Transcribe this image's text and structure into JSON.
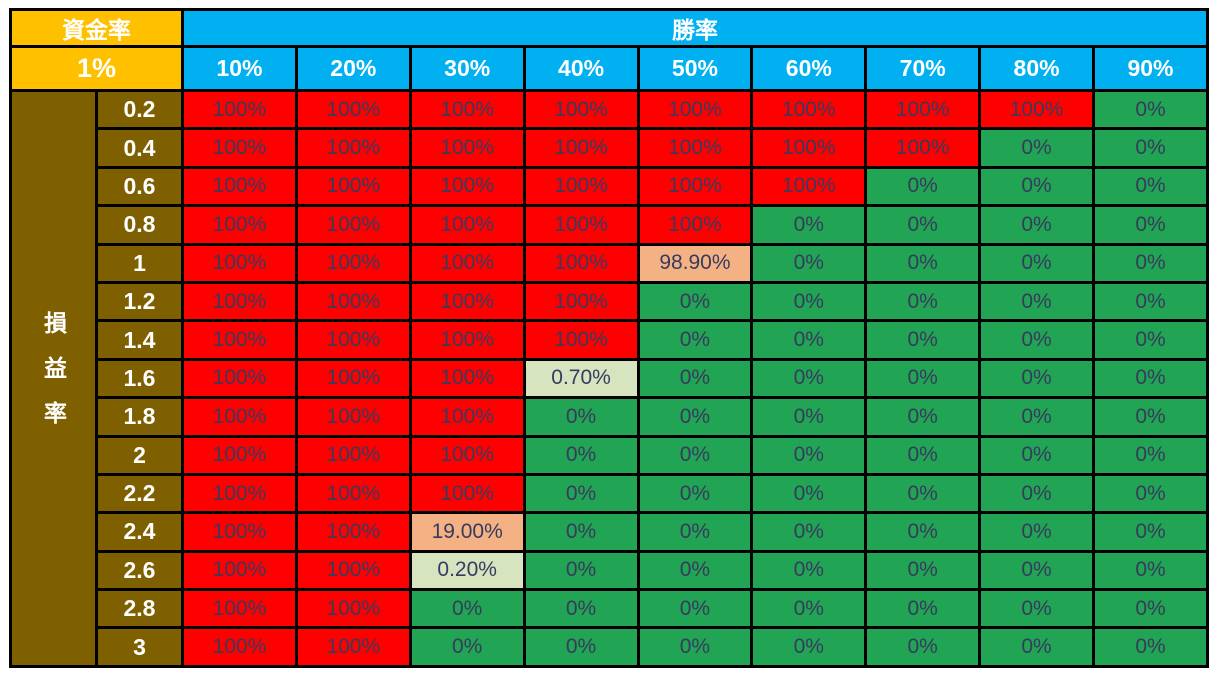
{
  "table": {
    "corner": {
      "title": "資金率",
      "value": "1%"
    },
    "win_rate": {
      "title": "勝率",
      "columns": [
        "10%",
        "20%",
        "30%",
        "40%",
        "50%",
        "60%",
        "70%",
        "80%",
        "90%"
      ]
    },
    "profit_loss": {
      "title": "損益率"
    },
    "rows": [
      {
        "label": "0.2",
        "values": [
          "100%",
          "100%",
          "100%",
          "100%",
          "100%",
          "100%",
          "100%",
          "100%",
          "0%"
        ],
        "styles": [
          "red",
          "red",
          "red",
          "red",
          "red",
          "red",
          "red",
          "red",
          "green"
        ]
      },
      {
        "label": "0.4",
        "values": [
          "100%",
          "100%",
          "100%",
          "100%",
          "100%",
          "100%",
          "100%",
          "0%",
          "0%"
        ],
        "styles": [
          "red",
          "red",
          "red",
          "red",
          "red",
          "red",
          "red",
          "green",
          "green"
        ]
      },
      {
        "label": "0.6",
        "values": [
          "100%",
          "100%",
          "100%",
          "100%",
          "100%",
          "100%",
          "0%",
          "0%",
          "0%"
        ],
        "styles": [
          "red",
          "red",
          "red",
          "red",
          "red",
          "red",
          "green",
          "green",
          "green"
        ]
      },
      {
        "label": "0.8",
        "values": [
          "100%",
          "100%",
          "100%",
          "100%",
          "100%",
          "0%",
          "0%",
          "0%",
          "0%"
        ],
        "styles": [
          "red",
          "red",
          "red",
          "red",
          "red",
          "green",
          "green",
          "green",
          "green"
        ]
      },
      {
        "label": "1",
        "values": [
          "100%",
          "100%",
          "100%",
          "100%",
          "98.90%",
          "0%",
          "0%",
          "0%",
          "0%"
        ],
        "styles": [
          "red",
          "red",
          "red",
          "red",
          "salmon",
          "green",
          "green",
          "green",
          "green"
        ]
      },
      {
        "label": "1.2",
        "values": [
          "100%",
          "100%",
          "100%",
          "100%",
          "0%",
          "0%",
          "0%",
          "0%",
          "0%"
        ],
        "styles": [
          "red",
          "red",
          "red",
          "red",
          "green",
          "green",
          "green",
          "green",
          "green"
        ]
      },
      {
        "label": "1.4",
        "values": [
          "100%",
          "100%",
          "100%",
          "100%",
          "0%",
          "0%",
          "0%",
          "0%",
          "0%"
        ],
        "styles": [
          "red",
          "red",
          "red",
          "red",
          "green",
          "green",
          "green",
          "green",
          "green"
        ]
      },
      {
        "label": "1.6",
        "values": [
          "100%",
          "100%",
          "100%",
          "0.70%",
          "0%",
          "0%",
          "0%",
          "0%",
          "0%"
        ],
        "styles": [
          "red",
          "red",
          "red",
          "palegreen",
          "green",
          "green",
          "green",
          "green",
          "green"
        ]
      },
      {
        "label": "1.8",
        "values": [
          "100%",
          "100%",
          "100%",
          "0%",
          "0%",
          "0%",
          "0%",
          "0%",
          "0%"
        ],
        "styles": [
          "red",
          "red",
          "red",
          "green",
          "green",
          "green",
          "green",
          "green",
          "green"
        ]
      },
      {
        "label": "2",
        "values": [
          "100%",
          "100%",
          "100%",
          "0%",
          "0%",
          "0%",
          "0%",
          "0%",
          "0%"
        ],
        "styles": [
          "red",
          "red",
          "red",
          "green",
          "green",
          "green",
          "green",
          "green",
          "green"
        ]
      },
      {
        "label": "2.2",
        "values": [
          "100%",
          "100%",
          "100%",
          "0%",
          "0%",
          "0%",
          "0%",
          "0%",
          "0%"
        ],
        "styles": [
          "red",
          "red",
          "red",
          "green",
          "green",
          "green",
          "green",
          "green",
          "green"
        ]
      },
      {
        "label": "2.4",
        "values": [
          "100%",
          "100%",
          "19.00%",
          "0%",
          "0%",
          "0%",
          "0%",
          "0%",
          "0%"
        ],
        "styles": [
          "red",
          "red",
          "salmon",
          "green",
          "green",
          "green",
          "green",
          "green",
          "green"
        ]
      },
      {
        "label": "2.6",
        "values": [
          "100%",
          "100%",
          "0.20%",
          "0%",
          "0%",
          "0%",
          "0%",
          "0%",
          "0%"
        ],
        "styles": [
          "red",
          "red",
          "palegreen",
          "green",
          "green",
          "green",
          "green",
          "green",
          "green"
        ]
      },
      {
        "label": "2.8",
        "values": [
          "100%",
          "100%",
          "0%",
          "0%",
          "0%",
          "0%",
          "0%",
          "0%",
          "0%"
        ],
        "styles": [
          "red",
          "red",
          "green",
          "green",
          "green",
          "green",
          "green",
          "green",
          "green"
        ]
      },
      {
        "label": "3",
        "values": [
          "100%",
          "100%",
          "0%",
          "0%",
          "0%",
          "0%",
          "0%",
          "0%",
          "0%"
        ],
        "styles": [
          "red",
          "red",
          "green",
          "green",
          "green",
          "green",
          "green",
          "green",
          "green"
        ]
      }
    ]
  },
  "colors": {
    "header_gold": "#FFC000",
    "header_blue": "#00B0F0",
    "label_dark_gold": "#7F6000",
    "cell_red": "#FF0000",
    "cell_green": "#21A453",
    "cell_salmon": "#F4B183",
    "cell_pale_green": "#D7E4C0",
    "cell_text": "#373B5E",
    "border_black": "#000000"
  },
  "chart_data": {
    "type": "heatmap",
    "title": "",
    "corner_label": "資金率",
    "corner_value": "1%",
    "col_axis_label": "勝率",
    "row_axis_label": "損益率",
    "columns": [
      "10%",
      "20%",
      "30%",
      "40%",
      "50%",
      "60%",
      "70%",
      "80%",
      "90%"
    ],
    "rows": [
      "0.2",
      "0.4",
      "0.6",
      "0.8",
      "1",
      "1.2",
      "1.4",
      "1.6",
      "1.8",
      "2",
      "2.2",
      "2.4",
      "2.6",
      "2.8",
      "3"
    ],
    "values_percent": [
      [
        100,
        100,
        100,
        100,
        100,
        100,
        100,
        100,
        0
      ],
      [
        100,
        100,
        100,
        100,
        100,
        100,
        100,
        0,
        0
      ],
      [
        100,
        100,
        100,
        100,
        100,
        100,
        0,
        0,
        0
      ],
      [
        100,
        100,
        100,
        100,
        100,
        0,
        0,
        0,
        0
      ],
      [
        100,
        100,
        100,
        100,
        98.9,
        0,
        0,
        0,
        0
      ],
      [
        100,
        100,
        100,
        100,
        0,
        0,
        0,
        0,
        0
      ],
      [
        100,
        100,
        100,
        100,
        0,
        0,
        0,
        0,
        0
      ],
      [
        100,
        100,
        100,
        0.7,
        0,
        0,
        0,
        0,
        0
      ],
      [
        100,
        100,
        100,
        0,
        0,
        0,
        0,
        0,
        0
      ],
      [
        100,
        100,
        100,
        0,
        0,
        0,
        0,
        0,
        0
      ],
      [
        100,
        100,
        100,
        0,
        0,
        0,
        0,
        0,
        0
      ],
      [
        100,
        100,
        19,
        0,
        0,
        0,
        0,
        0,
        0
      ],
      [
        100,
        100,
        0.2,
        0,
        0,
        0,
        0,
        0,
        0
      ],
      [
        100,
        100,
        0,
        0,
        0,
        0,
        0,
        0,
        0
      ],
      [
        100,
        100,
        0,
        0,
        0,
        0,
        0,
        0,
        0
      ]
    ],
    "legend": "cell color: red = 100% ruin, green = 0% ruin, salmon/pale-green = intermediate values",
    "grid": true,
    "legend_position": "none"
  }
}
